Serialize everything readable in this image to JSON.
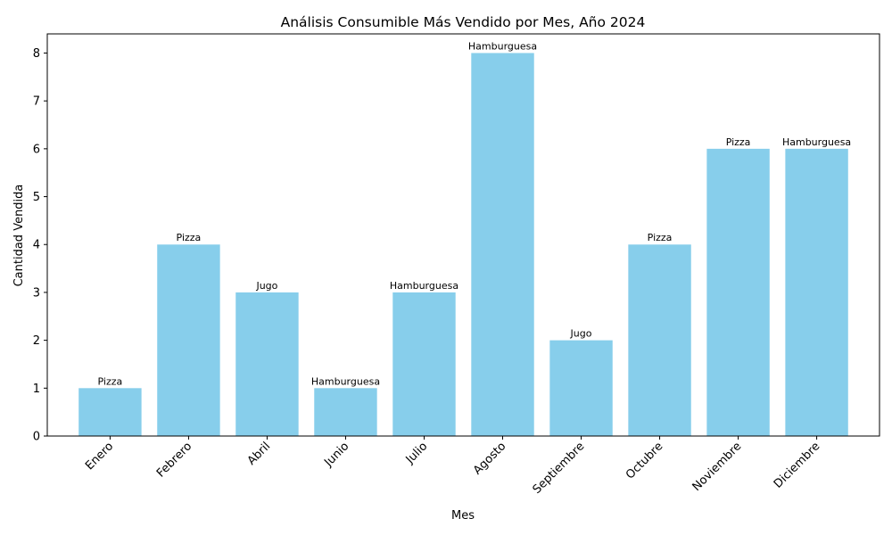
{
  "chart_data": {
    "type": "bar",
    "title": "Análisis Consumible Más Vendido por Mes, Año 2024",
    "xlabel": "Mes",
    "ylabel": "Cantidad Vendida",
    "categories": [
      "Enero",
      "Febrero",
      "Abril",
      "Junio",
      "Julio",
      "Agosto",
      "Septiembre",
      "Octubre",
      "Noviembre",
      "Diciembre"
    ],
    "values": [
      1,
      4,
      3,
      1,
      3,
      8,
      2,
      4,
      6,
      6
    ],
    "bar_labels": [
      "Pizza",
      "Pizza",
      "Jugo",
      "Hamburguesa",
      "Hamburguesa",
      "Hamburguesa",
      "Jugo",
      "Pizza",
      "Pizza",
      "Hamburguesa"
    ],
    "ylim": [
      0,
      8.4
    ],
    "yticks": [
      0,
      1,
      2,
      3,
      4,
      5,
      6,
      7,
      8
    ],
    "bar_color": "#87CEEB",
    "grid": false,
    "legend": null
  }
}
